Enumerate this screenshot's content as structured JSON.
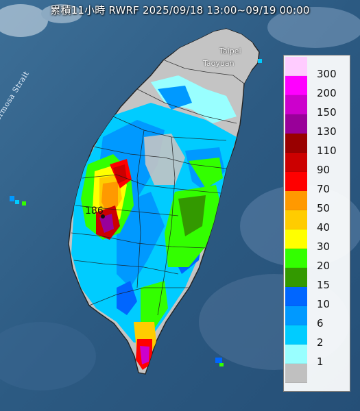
{
  "title": "累積11小時 RWRF 2025/09/18 13:00~09/19 00:00",
  "map_labels": {
    "strait": "Formosa Strait",
    "taipei": "Taipei",
    "taoyuan": "Taoyuan",
    "max_value": "186"
  },
  "legend": {
    "items": [
      {
        "label": "300",
        "color": "#ffccff"
      },
      {
        "label": "200",
        "color": "#ff00ff"
      },
      {
        "label": "150",
        "color": "#cc00cc"
      },
      {
        "label": "130",
        "color": "#990099"
      },
      {
        "label": "110",
        "color": "#990000"
      },
      {
        "label": "90",
        "color": "#cc0000"
      },
      {
        "label": "70",
        "color": "#ff0000"
      },
      {
        "label": "50",
        "color": "#ff9900"
      },
      {
        "label": "40",
        "color": "#ffcc00"
      },
      {
        "label": "30",
        "color": "#ffff00"
      },
      {
        "label": "20",
        "color": "#33ff00"
      },
      {
        "label": "15",
        "color": "#339900"
      },
      {
        "label": "10",
        "color": "#0066ff"
      },
      {
        "label": "6",
        "color": "#0099ff"
      },
      {
        "label": "2",
        "color": "#00ccff"
      },
      {
        "label": "1",
        "color": "#99ffff"
      },
      {
        "label": "",
        "color": "#c0c0c0"
      }
    ]
  }
}
